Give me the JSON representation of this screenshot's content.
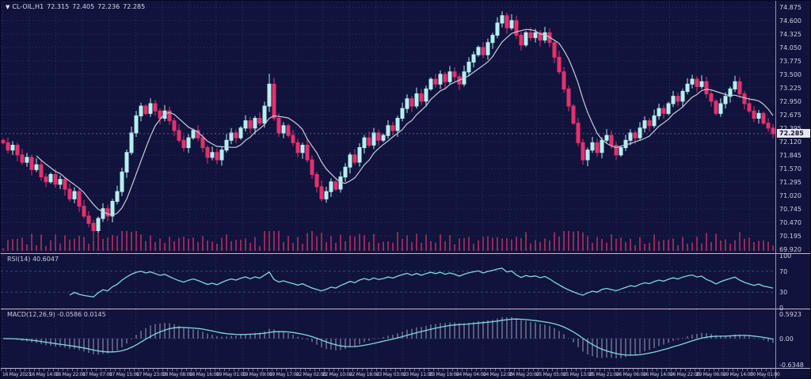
{
  "window": {
    "title_symbol": "CL-OIL,H1",
    "ohlc_open": "72.315",
    "ohlc_high": "72.405",
    "ohlc_low": "72.236",
    "ohlc_close": "72.285"
  },
  "chart_data": {
    "type": "candlestick",
    "symbol": "CL-OIL",
    "timeframe": "H1",
    "last_bar": {
      "open": 72.315,
      "high": 72.405,
      "low": 72.236,
      "close": 72.285
    },
    "price_axis": {
      "labels": [
        "74.875",
        "74.600",
        "74.325",
        "74.050",
        "73.775",
        "73.500",
        "73.225",
        "72.950",
        "72.675",
        "72.395",
        "72.120",
        "71.845",
        "71.570",
        "71.295",
        "71.020",
        "70.745",
        "70.470",
        "70.195",
        "69.920"
      ],
      "current": 72.285,
      "current_label": "72.285"
    },
    "time_axis": {
      "labels": [
        "16 May 2023",
        "16 May 14:00",
        "16 May 22:00",
        "17 May 07:00",
        "17 May 15:00",
        "17 May 23:00",
        "18 May 08:00",
        "18 May 16:00",
        "19 May 01:00",
        "19 May 09:00",
        "19 May 17:00",
        "22 May 02:00",
        "22 May 10:00",
        "22 May 18:00",
        "23 May 03:00",
        "23 May 11:00",
        "23 May 19:00",
        "24 May 04:00",
        "24 May 12:00",
        "24 May 20:00",
        "25 May 05:00",
        "25 May 13:00",
        "25 May 21:00",
        "26 May 06:00",
        "26 May 14:00",
        "26 May 22:00",
        "29 May 06:00",
        "29 May 14:00",
        "30 May 01:00"
      ]
    },
    "candles_close": [
      72.1,
      71.95,
      72.05,
      71.85,
      71.7,
      71.8,
      71.55,
      71.65,
      71.4,
      71.3,
      71.45,
      71.25,
      71.35,
      71.15,
      70.95,
      71.1,
      70.8,
      70.6,
      70.45,
      70.3,
      70.55,
      70.75,
      70.6,
      70.9,
      71.1,
      71.5,
      71.9,
      72.3,
      72.65,
      72.85,
      72.7,
      72.9,
      72.75,
      72.6,
      72.75,
      72.55,
      72.35,
      72.15,
      72.0,
      72.2,
      72.35,
      72.2,
      72.0,
      71.8,
      71.9,
      71.75,
      71.95,
      72.15,
      72.3,
      72.2,
      72.4,
      72.55,
      72.4,
      72.6,
      72.5,
      72.85,
      73.3,
      72.6,
      72.3,
      72.45,
      72.25,
      72.1,
      71.9,
      72.05,
      71.75,
      71.45,
      71.2,
      70.95,
      71.1,
      71.3,
      71.15,
      71.4,
      71.6,
      71.85,
      71.7,
      72.0,
      72.2,
      72.05,
      72.3,
      72.15,
      72.25,
      72.45,
      72.35,
      72.6,
      72.8,
      73.0,
      72.85,
      73.1,
      72.95,
      73.2,
      73.4,
      73.3,
      73.5,
      73.35,
      73.55,
      73.45,
      73.3,
      73.55,
      73.75,
      73.9,
      74.05,
      73.9,
      74.15,
      74.3,
      74.55,
      74.7,
      74.45,
      74.6,
      74.3,
      74.1,
      74.35,
      74.25,
      74.35,
      74.2,
      74.35,
      74.15,
      73.85,
      73.55,
      73.2,
      72.85,
      72.5,
      72.1,
      71.75,
      71.95,
      72.1,
      71.9,
      72.15,
      72.25,
      72.05,
      71.85,
      72.0,
      72.15,
      72.3,
      72.2,
      72.4,
      72.55,
      72.45,
      72.65,
      72.8,
      72.7,
      72.9,
      73.05,
      72.95,
      73.15,
      73.3,
      73.4,
      73.25,
      73.35,
      73.1,
      72.95,
      72.7,
      72.9,
      73.05,
      73.2,
      73.35,
      73.1,
      72.9,
      72.75,
      72.6,
      72.7,
      72.5,
      72.4,
      72.285
    ],
    "indicators": {
      "ma": {
        "period": 8
      },
      "rsi": {
        "label": "RSI(14) 40.6047",
        "period": 14,
        "value": 40.6047,
        "axis_labels": [
          "100",
          "70",
          "30",
          "0"
        ],
        "levels": [
          70,
          30
        ]
      },
      "macd": {
        "label": "MACD(12,26,9) -0.0586 0.0145",
        "fast": 12,
        "slow": 26,
        "signal": 9,
        "value": -0.0586,
        "signal_value": 0.0145,
        "axis_labels": [
          "0.5923",
          "0.00",
          "-0.6348"
        ]
      }
    }
  },
  "colors": {
    "background": "#10133c",
    "grid": "#2f3565",
    "candle_up": "#b6eff0",
    "candle_down": "#e6306e",
    "ma_line": "#c9ccda",
    "indicator_line": "#82d7e0",
    "histogram": "#9ba1c3",
    "volume": "#93295a",
    "separator": "#c6b9cb",
    "axis_text": "#ccd0e2",
    "price_tag_bg": "#e6e6ee",
    "price_tag_text": "#101338"
  }
}
